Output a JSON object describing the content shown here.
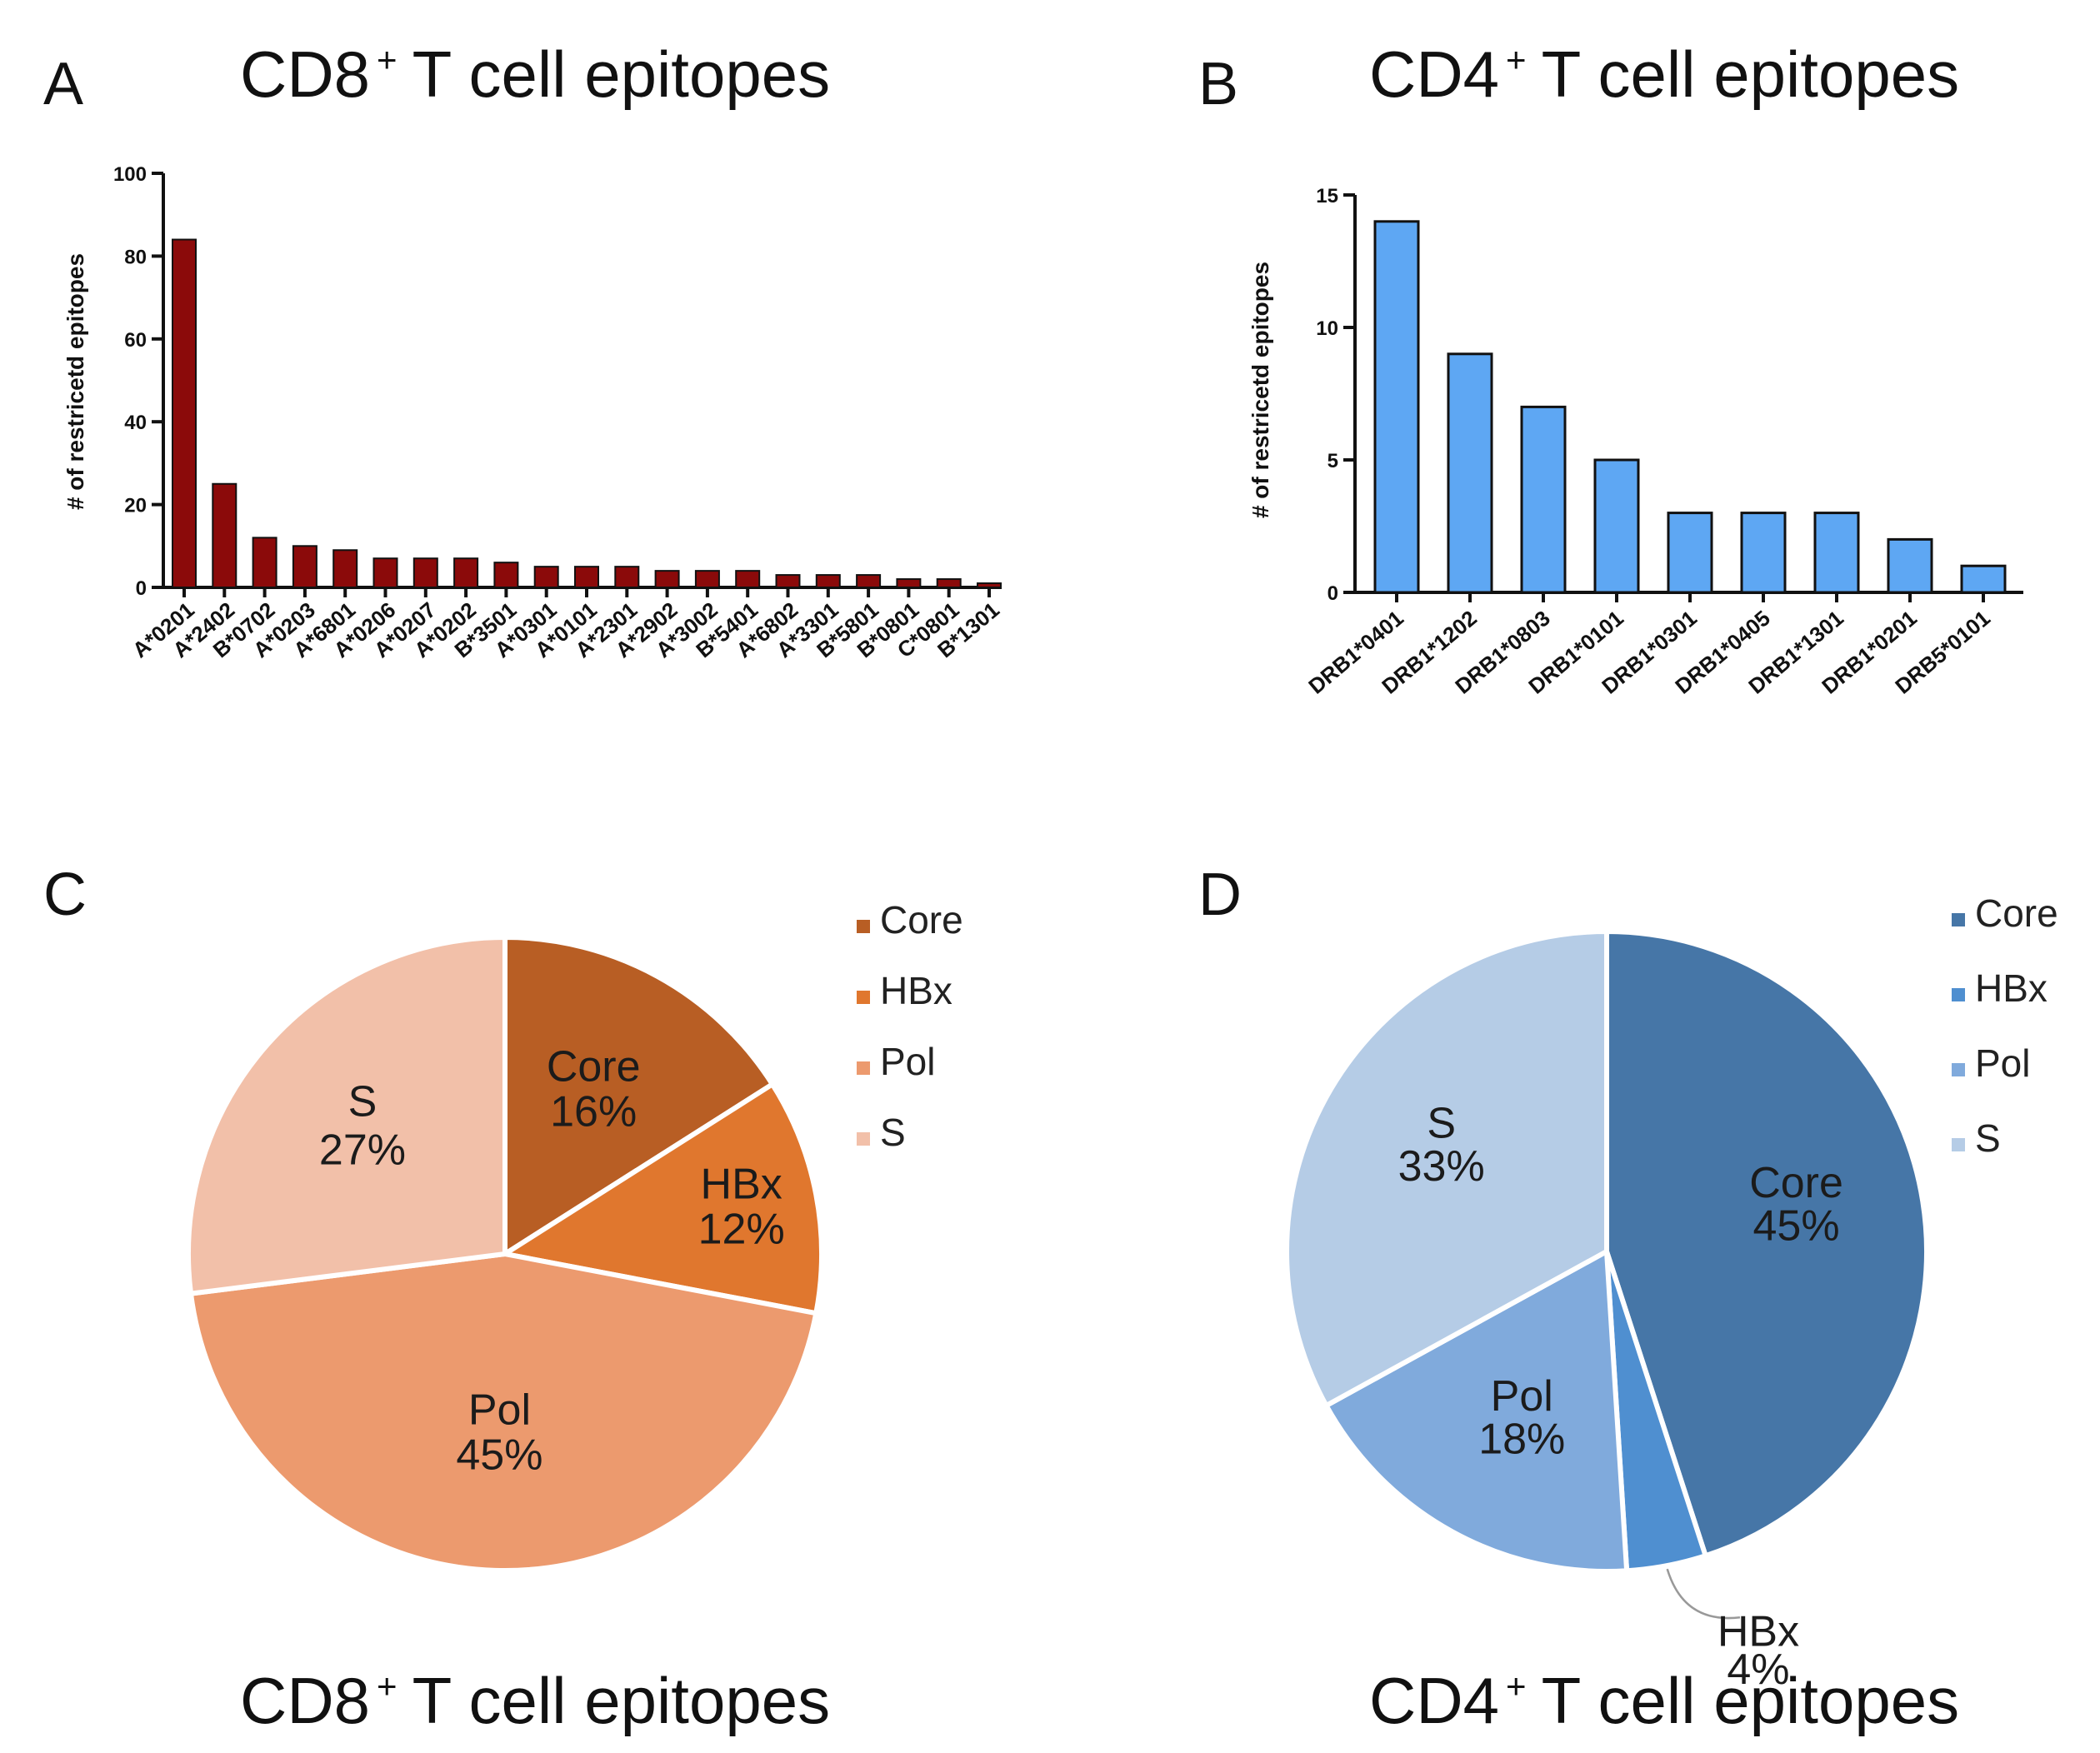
{
  "chart_data": [
    {
      "panel": "A",
      "type": "bar",
      "title": "CD8",
      "title_sup": "+",
      "title_rest": "T cell epitopes",
      "ylabel": "# of restricetd epitopes",
      "xlabel": "",
      "ylim": [
        0,
        100
      ],
      "yticks": [
        0,
        20,
        40,
        60,
        80,
        100
      ],
      "grid": false,
      "categories": [
        "A*0201",
        "A*2402",
        "B*0702",
        "A*0203",
        "A*6801",
        "A*0206",
        "A*0207",
        "A*0202",
        "B*3501",
        "A*0301",
        "A*0101",
        "A*2301",
        "A*2902",
        "A*3002",
        "B*5401",
        "A*6802",
        "A*3301",
        "B*5801",
        "B*0801",
        "C*0801",
        "B*1301"
      ],
      "values": [
        84,
        25,
        12,
        10,
        9,
        7,
        7,
        7,
        6,
        5,
        5,
        5,
        4,
        4,
        4,
        3,
        3,
        3,
        2,
        2,
        1
      ],
      "bar_color": "#8b0a0a"
    },
    {
      "panel": "B",
      "type": "bar",
      "title": "CD4",
      "title_sup": "+",
      "title_rest": "T cell epitopes",
      "ylabel": "# of restricetd epitopes",
      "xlabel": "",
      "ylim": [
        0,
        15
      ],
      "yticks": [
        0,
        5,
        10,
        15
      ],
      "grid": false,
      "categories": [
        "DRB1*0401",
        "DRB1*1202",
        "DRB1*0803",
        "DRB1*0101",
        "DRB1*0301",
        "DRB1*0405",
        "DRB1*1301",
        "DRB1*0201",
        "DRB5*0101"
      ],
      "values": [
        14,
        9,
        7,
        5,
        3,
        3,
        3,
        2,
        1
      ],
      "bar_color": "#5ea7f3"
    },
    {
      "panel": "C",
      "type": "pie",
      "title": "CD8",
      "title_sup": "+",
      "title_rest": "T cell epitopes",
      "legend_position": "top-right",
      "slices": [
        {
          "name": "Core",
          "value": 16,
          "label": "16%",
          "color": "#b85e24"
        },
        {
          "name": "HBx",
          "value": 12,
          "label": "12%",
          "color": "#e0772e"
        },
        {
          "name": "Pol",
          "value": 45,
          "label": "45%",
          "color": "#ec9a6e"
        },
        {
          "name": "S",
          "value": 27,
          "label": "27%",
          "color": "#f2c0a9"
        }
      ]
    },
    {
      "panel": "D",
      "type": "pie",
      "title": "CD4",
      "title_sup": "+",
      "title_rest": "T cell epitopes",
      "legend_position": "top-right",
      "slices": [
        {
          "name": "Core",
          "value": 45,
          "label": "45%",
          "color": "#4676a7"
        },
        {
          "name": "HBx",
          "value": 4,
          "label": "4%",
          "color": "#4f8fd0"
        },
        {
          "name": "Pol",
          "value": 18,
          "label": "18%",
          "color": "#80aadc"
        },
        {
          "name": "S",
          "value": 33,
          "label": "33%",
          "color": "#b5cce6"
        }
      ]
    }
  ]
}
